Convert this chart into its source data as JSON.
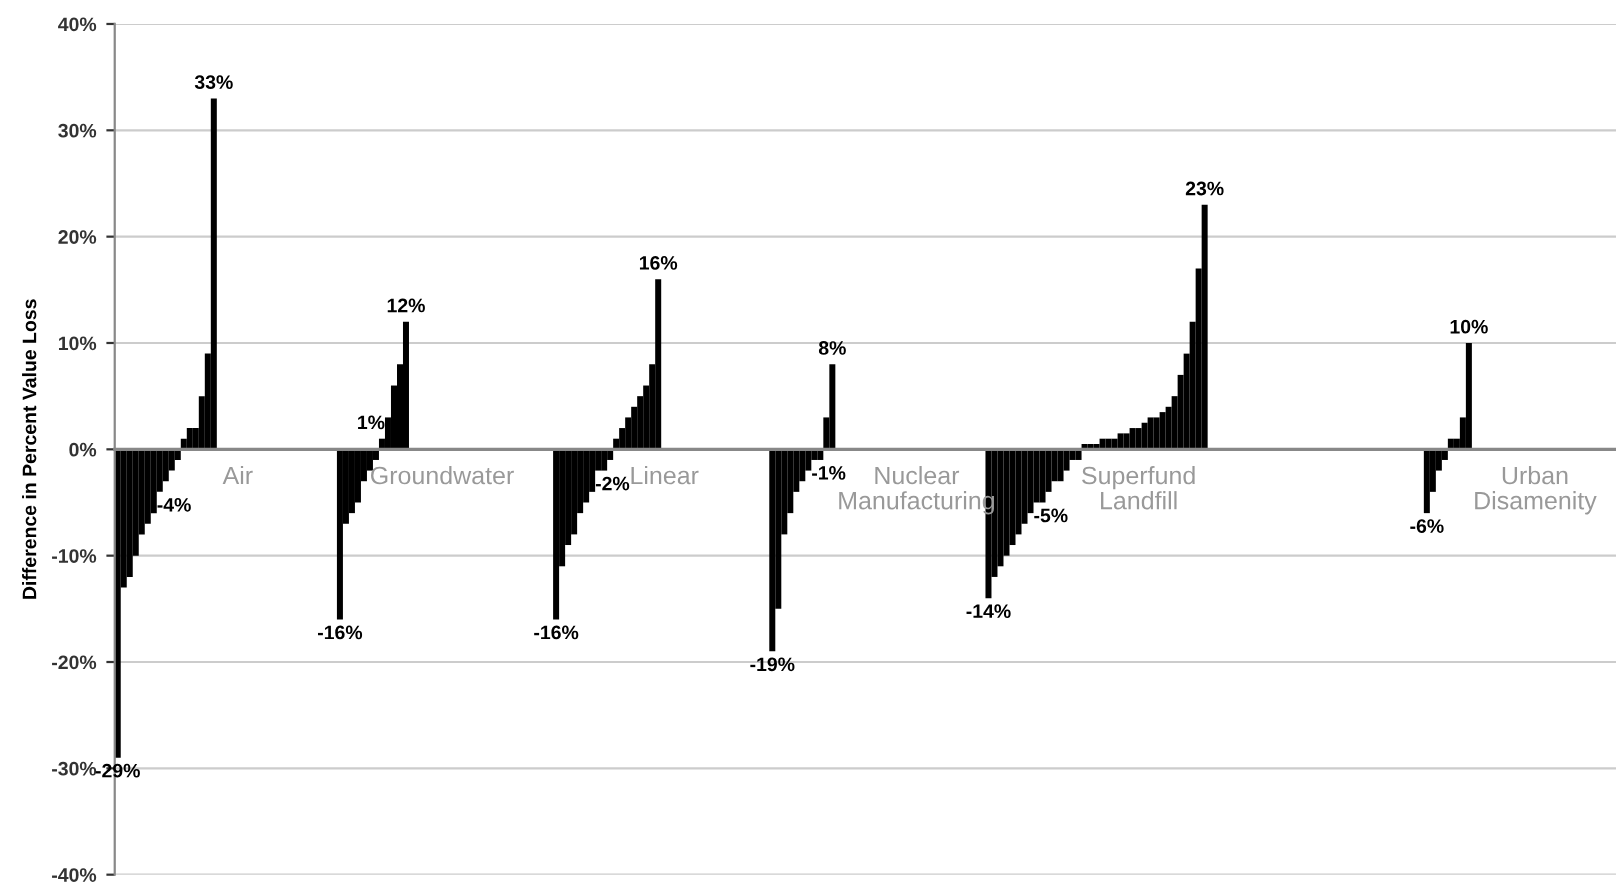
{
  "chart_data": {
    "type": "bar",
    "ylabel": "Difference in Percent Value Loss",
    "color": "#000000",
    "categories": [
      null,
      null,
      null,
      null,
      null,
      null,
      null,
      null,
      null,
      null,
      null,
      null,
      null,
      null,
      null,
      null,
      null,
      null,
      null,
      null,
      "Air",
      null,
      null,
      null,
      null,
      null,
      null,
      null,
      null,
      null,
      null,
      null,
      null,
      null,
      null,
      null,
      null,
      null,
      null,
      null,
      null,
      null,
      null,
      null,
      null,
      null,
      null,
      null,
      null,
      null,
      null,
      null,
      null,
      null,
      "Groundwater",
      null,
      null,
      null,
      null,
      null,
      null,
      null,
      null,
      null,
      null,
      null,
      null,
      null,
      null,
      null,
      null,
      null,
      null,
      null,
      null,
      null,
      null,
      null,
      null,
      null,
      null,
      null,
      null,
      null,
      null,
      null,
      null,
      null,
      null,
      null,
      null,
      "Linear",
      null,
      null,
      null,
      null,
      null,
      null,
      null,
      null,
      null,
      null,
      null,
      null,
      null,
      null,
      null,
      null,
      null,
      null,
      null,
      null,
      null,
      null,
      null,
      null,
      null,
      null,
      null,
      null,
      null,
      null,
      null,
      null,
      null,
      null,
      null,
      null,
      null,
      null,
      null,
      null,
      null,
      "Nuclear\nManufacturing",
      null,
      null,
      null,
      null,
      null,
      null,
      null,
      null,
      null,
      null,
      null,
      null,
      null,
      null,
      null,
      null,
      null,
      null,
      null,
      null,
      null,
      null,
      null,
      null,
      null,
      null,
      null,
      null,
      null,
      null,
      null,
      null,
      null,
      null,
      null,
      null,
      "Superfund\nLandfill",
      null,
      null,
      null,
      null,
      null,
      null,
      null,
      null,
      null,
      null,
      null,
      null,
      null,
      null,
      null,
      null,
      null,
      null,
      null,
      null,
      null,
      null,
      null,
      null,
      null,
      null,
      null,
      null,
      null,
      null,
      null,
      null,
      null,
      null,
      null,
      null,
      null,
      null,
      null,
      null,
      null,
      null,
      null,
      null,
      null,
      null,
      null,
      null,
      null,
      null,
      null,
      null,
      null,
      null,
      null,
      null,
      null,
      null,
      null,
      null,
      null,
      null,
      null,
      null,
      null,
      "Urban\nDisamenity",
      null,
      null,
      null,
      null,
      null,
      null,
      null,
      null,
      null,
      null,
      null,
      null,
      null
    ],
    "values": [
      -29,
      -13,
      -12,
      -10,
      -8,
      -7,
      -6,
      -4,
      -3,
      -2,
      -1,
      1,
      2,
      2,
      5,
      9,
      33,
      null,
      null,
      null,
      null,
      null,
      null,
      null,
      null,
      null,
      null,
      null,
      null,
      null,
      null,
      null,
      null,
      null,
      null,
      null,
      null,
      -16,
      -7,
      -6,
      -5,
      -3,
      -2,
      -1,
      1,
      3,
      6,
      8,
      12,
      null,
      null,
      null,
      null,
      null,
      null,
      null,
      null,
      null,
      null,
      null,
      null,
      null,
      null,
      null,
      null,
      null,
      null,
      null,
      null,
      null,
      null,
      null,
      null,
      -16,
      -11,
      -9,
      -8,
      -6,
      -5,
      -4,
      -2,
      -2,
      -1,
      1,
      2,
      3,
      4,
      5,
      6,
      8,
      16,
      null,
      null,
      null,
      null,
      null,
      null,
      null,
      null,
      null,
      null,
      null,
      null,
      null,
      null,
      null,
      null,
      null,
      null,
      -19,
      -15,
      -8,
      -6,
      -4,
      -3,
      -2,
      -1,
      -1,
      3,
      8,
      null,
      null,
      null,
      null,
      null,
      null,
      null,
      null,
      null,
      null,
      null,
      null,
      null,
      null,
      null,
      null,
      null,
      null,
      null,
      null,
      null,
      null,
      null,
      null,
      null,
      -14,
      -12,
      -11,
      -10,
      -9,
      -8,
      -7,
      -6,
      -5,
      -5,
      -4,
      -3,
      -3,
      -2,
      -1,
      -1,
      0.5,
      0.5,
      0.5,
      1,
      1,
      1,
      1.5,
      1.5,
      2,
      2,
      2.5,
      3,
      3,
      3.5,
      4,
      5,
      7,
      9,
      12,
      17,
      23,
      null,
      null,
      null,
      null,
      null,
      null,
      null,
      null,
      null,
      null,
      null,
      null,
      null,
      null,
      null,
      null,
      null,
      null,
      null,
      null,
      null,
      null,
      null,
      null,
      null,
      null,
      null,
      null,
      null,
      null,
      null,
      null,
      null,
      null,
      null,
      null,
      -6,
      -4,
      -2,
      -1,
      1,
      1,
      3,
      10,
      null,
      null,
      null,
      null,
      null,
      null,
      null,
      null,
      null,
      null,
      null,
      null,
      null,
      null,
      null,
      null,
      null,
      null,
      null,
      null,
      null,
      null,
      null,
      null
    ],
    "value_labels": [
      "-29%",
      null,
      null,
      null,
      null,
      null,
      null,
      "-4%",
      null,
      null,
      null,
      null,
      null,
      null,
      null,
      null,
      "33%",
      null,
      null,
      null,
      null,
      null,
      null,
      null,
      null,
      null,
      null,
      null,
      null,
      null,
      null,
      null,
      null,
      null,
      null,
      null,
      null,
      "-16%",
      null,
      null,
      null,
      null,
      null,
      null,
      "1%",
      null,
      null,
      null,
      "12%",
      null,
      null,
      null,
      null,
      null,
      null,
      null,
      null,
      null,
      null,
      null,
      null,
      null,
      null,
      null,
      null,
      null,
      null,
      null,
      null,
      null,
      null,
      null,
      null,
      "-16%",
      null,
      null,
      null,
      null,
      null,
      null,
      "-2%",
      null,
      null,
      null,
      null,
      null,
      null,
      null,
      null,
      null,
      "16%",
      null,
      null,
      null,
      null,
      null,
      null,
      null,
      null,
      null,
      null,
      null,
      null,
      null,
      null,
      null,
      null,
      null,
      null,
      "-19%",
      null,
      null,
      null,
      null,
      null,
      null,
      "-1%",
      null,
      null,
      "8%",
      null,
      null,
      null,
      null,
      null,
      null,
      null,
      null,
      null,
      null,
      null,
      null,
      null,
      null,
      null,
      null,
      null,
      null,
      null,
      null,
      null,
      null,
      null,
      null,
      null,
      "-14%",
      null,
      null,
      null,
      null,
      null,
      null,
      null,
      "-5%",
      null,
      null,
      null,
      null,
      null,
      null,
      null,
      null,
      null,
      null,
      null,
      null,
      null,
      null,
      null,
      null,
      null,
      null,
      null,
      null,
      null,
      null,
      null,
      null,
      null,
      null,
      null,
      "23%",
      null,
      null,
      null,
      null,
      null,
      null,
      null,
      null,
      null,
      null,
      null,
      null,
      null,
      null,
      null,
      null,
      null,
      null,
      null,
      null,
      null,
      null,
      null,
      null,
      null,
      null,
      null,
      null,
      null,
      null,
      null,
      null,
      null,
      null,
      null,
      null,
      "-6%",
      null,
      null,
      null,
      null,
      null,
      null,
      "10%",
      null,
      null,
      null,
      null,
      null,
      null,
      null,
      null,
      null,
      null,
      null,
      null,
      null,
      null,
      null,
      null,
      null,
      null,
      null,
      null,
      null,
      null,
      null,
      null
    ],
    "ylim": [
      -40,
      40
    ],
    "yticks": [
      {
        "value": -40,
        "label": "-40%"
      },
      {
        "value": -30,
        "label": "-30%"
      },
      {
        "value": -20,
        "label": "-20%"
      },
      {
        "value": -10,
        "label": "-10%"
      },
      {
        "value": 0,
        "label": "0%"
      },
      {
        "value": 10,
        "label": "10%"
      },
      {
        "value": 20,
        "label": "20%"
      },
      {
        "value": 30,
        "label": "30%"
      },
      {
        "value": 40,
        "label": "40%"
      }
    ],
    "grid": "y",
    "legend": false
  }
}
